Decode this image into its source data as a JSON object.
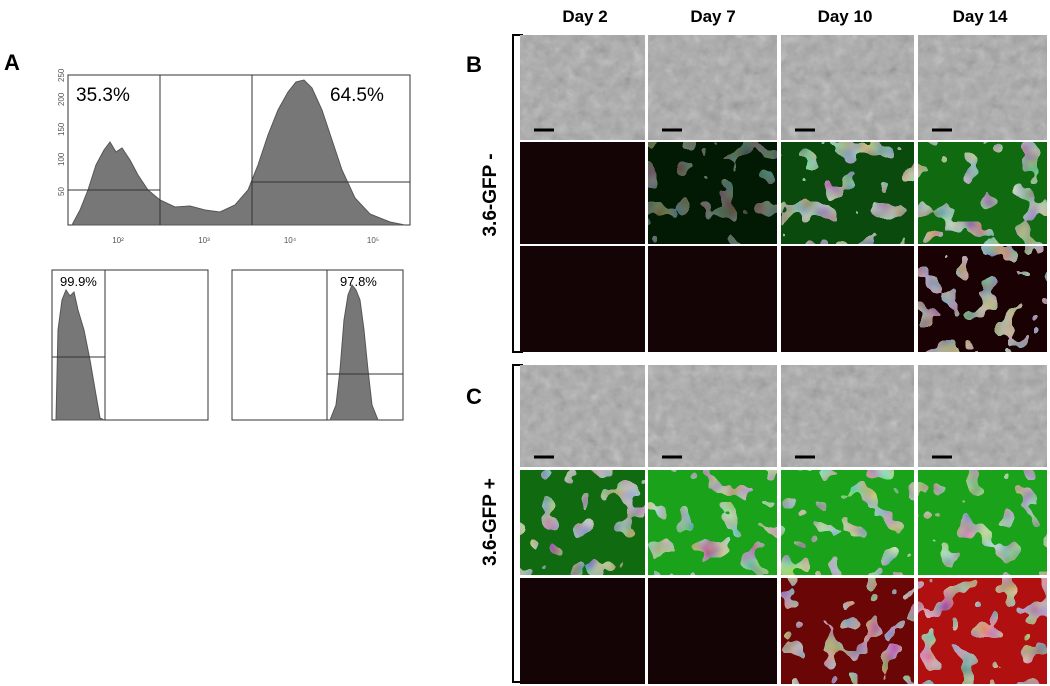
{
  "panels": {
    "A": {
      "label": "A",
      "top": {
        "gates": [
          "35.3%",
          "64.5%"
        ],
        "xticks": [
          "10²",
          "10³",
          "10⁴",
          "10⁵"
        ],
        "yticks": [
          "50",
          "100",
          "150",
          "200",
          "250"
        ]
      },
      "bottom_left": {
        "gate": "99.9%"
      },
      "bottom_right": {
        "gate": "97.8%"
      }
    },
    "B": {
      "label": "B",
      "row_label": "3.6-GFP -"
    },
    "C": {
      "label": "C",
      "row_label": "3.6-GFP +"
    }
  },
  "columns": [
    "Day 2",
    "Day 7",
    "Day 10",
    "Day 14"
  ]
}
